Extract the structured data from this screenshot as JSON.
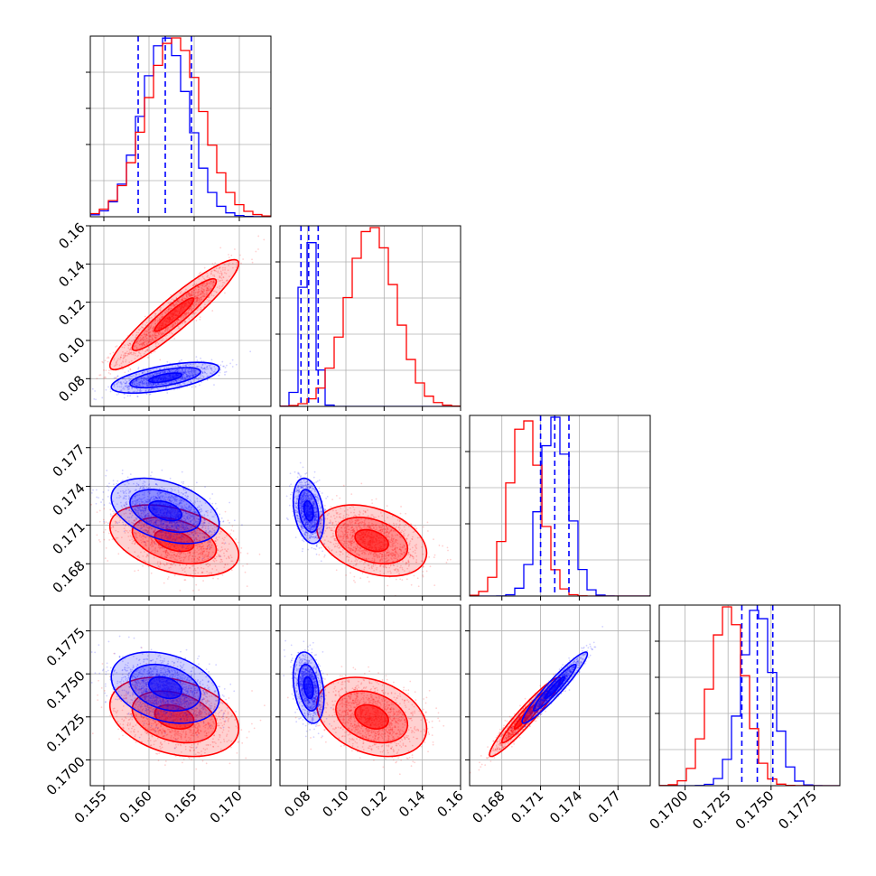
{
  "chart_data": {
    "type": "corner",
    "title": "",
    "parameters": [
      {
        "range": [
          0.1535,
          0.1735
        ],
        "ticks": [
          "0.155",
          "0.160",
          "0.165",
          "0.170"
        ]
      },
      {
        "range": [
          0.0655,
          0.16
        ],
        "ticks": [
          "0.08",
          "0.10",
          "0.12",
          "0.14",
          "0.16"
        ]
      },
      {
        "range": [
          0.1655,
          0.1795
        ],
        "ticks": [
          "0.168",
          "0.171",
          "0.174",
          "0.177"
        ]
      },
      {
        "range": [
          0.1685,
          0.179
        ],
        "ticks": [
          "0.1700",
          "0.1725",
          "0.1750",
          "0.1775"
        ]
      }
    ],
    "colors": {
      "blue": "#0000ff",
      "red": "#ff0000",
      "grid": "#b0b0b0"
    },
    "series": [
      {
        "color": "blue",
        "mean": [
          0.1618,
          0.0805,
          0.1721,
          0.1742
        ],
        "std": [
          0.0026,
          0.0035,
          0.0011,
          0.0009
        ],
        "corr": [
          [
            1,
            0.6,
            -0.4,
            -0.3
          ],
          [
            0.6,
            1,
            -0.3,
            -0.3
          ],
          [
            -0.4,
            -0.3,
            1,
            0.95
          ],
          [
            -0.3,
            -0.3,
            0.95,
            1
          ]
        ],
        "quantiles": [
          [
            0.1588,
            0.1618,
            0.1647
          ],
          [
            0.0765,
            0.0805,
            0.0855
          ],
          [
            0.171,
            0.1721,
            0.1732
          ],
          [
            0.1733,
            0.1742,
            0.1751
          ]
        ]
      },
      {
        "color": "red",
        "mean": [
          0.1628,
          0.1135,
          0.1698,
          0.1725
        ],
        "std": [
          0.0031,
          0.0125,
          0.0012,
          0.001
        ],
        "corr": [
          [
            1,
            0.93,
            -0.4,
            -0.3
          ],
          [
            0.93,
            1,
            -0.35,
            -0.3
          ],
          [
            -0.4,
            -0.35,
            1,
            0.95
          ],
          [
            -0.3,
            -0.3,
            0.95,
            1
          ]
        ]
      }
    ]
  }
}
